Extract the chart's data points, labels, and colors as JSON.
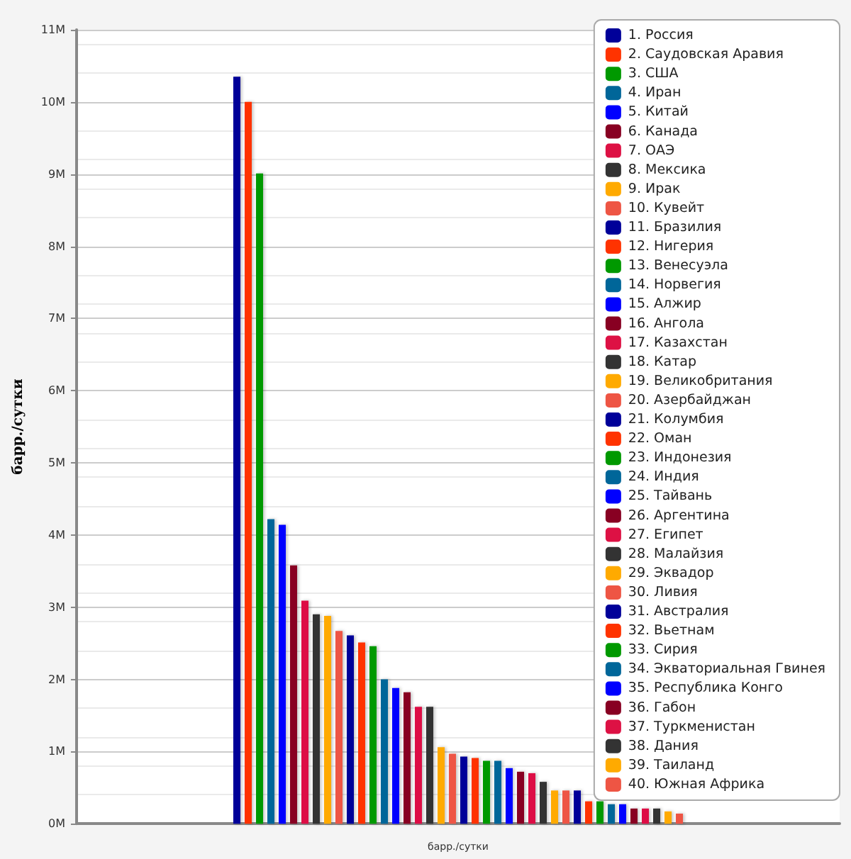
{
  "chart_data": {
    "type": "bar",
    "xlabel": "барр./сутки",
    "ylabel": "барр./сутки",
    "categories": [
      null
    ],
    "series": [
      {
        "name": "1. Россия",
        "color": "#000099",
        "values": [
          10350000
        ]
      },
      {
        "name": "2. Саудовская Аравия",
        "color": "#ff3300",
        "values": [
          10000000
        ]
      },
      {
        "name": "3. США",
        "color": "#009900",
        "values": [
          9010000
        ]
      },
      {
        "name": "4. Иран",
        "color": "#006699",
        "values": [
          4220000
        ]
      },
      {
        "name": "5. Китай",
        "color": "#0000ff",
        "values": [
          4140000
        ]
      },
      {
        "name": "6. Канада",
        "color": "#880022",
        "values": [
          3580000
        ]
      },
      {
        "name": "7. ОАЭ",
        "color": "#dd1144",
        "values": [
          3090000
        ]
      },
      {
        "name": "8. Мексика",
        "color": "#333333",
        "values": [
          2900000
        ]
      },
      {
        "name": "9. Ирак",
        "color": "#ffaa00",
        "values": [
          2880000
        ]
      },
      {
        "name": "10. Кувейт",
        "color": "#ee5544",
        "values": [
          2670000
        ]
      },
      {
        "name": "11. Бразилия",
        "color": "#000099",
        "values": [
          2610000
        ]
      },
      {
        "name": "12. Нигерия",
        "color": "#ff3300",
        "values": [
          2510000
        ]
      },
      {
        "name": "13. Венесуэла",
        "color": "#009900",
        "values": [
          2460000
        ]
      },
      {
        "name": "14. Норвегия",
        "color": "#006699",
        "values": [
          2000000
        ]
      },
      {
        "name": "15. Алжир",
        "color": "#0000ff",
        "values": [
          1880000
        ]
      },
      {
        "name": "16. Ангола",
        "color": "#880022",
        "values": [
          1820000
        ]
      },
      {
        "name": "17. Казахстан",
        "color": "#dd1144",
        "values": [
          1620000
        ]
      },
      {
        "name": "18. Катар",
        "color": "#333333",
        "values": [
          1620000
        ]
      },
      {
        "name": "19. Великобритания",
        "color": "#ffaa00",
        "values": [
          1060000
        ]
      },
      {
        "name": "20. Азербайджан",
        "color": "#ee5544",
        "values": [
          970000
        ]
      },
      {
        "name": "21. Колумбия",
        "color": "#000099",
        "values": [
          930000
        ]
      },
      {
        "name": "22. Оман",
        "color": "#ff3300",
        "values": [
          910000
        ]
      },
      {
        "name": "23. Индонезия",
        "color": "#009900",
        "values": [
          870000
        ]
      },
      {
        "name": "24. Индия",
        "color": "#006699",
        "values": [
          870000
        ]
      },
      {
        "name": "25. Тайвань",
        "color": "#0000ff",
        "values": [
          770000
        ]
      },
      {
        "name": "26. Аргентина",
        "color": "#880022",
        "values": [
          720000
        ]
      },
      {
        "name": "27. Египет",
        "color": "#dd1144",
        "values": [
          700000
        ]
      },
      {
        "name": "28. Малайзия",
        "color": "#333333",
        "values": [
          580000
        ]
      },
      {
        "name": "29. Эквадор",
        "color": "#ffaa00",
        "values": [
          460000
        ]
      },
      {
        "name": "30. Ливия",
        "color": "#ee5544",
        "values": [
          460000
        ]
      },
      {
        "name": "31. Австралия",
        "color": "#000099",
        "values": [
          460000
        ]
      },
      {
        "name": "32. Вьетнам",
        "color": "#ff3300",
        "values": [
          310000
        ]
      },
      {
        "name": "33. Сирия",
        "color": "#009900",
        "values": [
          310000
        ]
      },
      {
        "name": "34. Экваториальная Гвинея",
        "color": "#006699",
        "values": [
          270000
        ]
      },
      {
        "name": "35. Республика Конго",
        "color": "#0000ff",
        "values": [
          270000
        ]
      },
      {
        "name": "36. Габон",
        "color": "#880022",
        "values": [
          210000
        ]
      },
      {
        "name": "37. Туркменистан",
        "color": "#dd1144",
        "values": [
          210000
        ]
      },
      {
        "name": "38. Дания",
        "color": "#333333",
        "values": [
          210000
        ]
      },
      {
        "name": "39. Таиланд",
        "color": "#ffaa00",
        "values": [
          170000
        ]
      },
      {
        "name": "40. Южная Африка",
        "color": "#ee5544",
        "values": [
          140000
        ]
      }
    ],
    "ylim": [
      0,
      11000000
    ],
    "yticks": [
      {
        "value": 0,
        "label": "0M"
      },
      {
        "value": 1000000,
        "label": "1M"
      },
      {
        "value": 2000000,
        "label": "2M"
      },
      {
        "value": 3000000,
        "label": "3M"
      },
      {
        "value": 4000000,
        "label": "4M"
      },
      {
        "value": 5000000,
        "label": "5M"
      },
      {
        "value": 6000000,
        "label": "6M"
      },
      {
        "value": 7000000,
        "label": "7M"
      },
      {
        "value": 8000000,
        "label": "8M"
      },
      {
        "value": 9000000,
        "label": "9M"
      },
      {
        "value": 10000000,
        "label": "10M"
      },
      {
        "value": 11000000,
        "label": "11M"
      }
    ],
    "grid": "y",
    "legend": "top right"
  }
}
